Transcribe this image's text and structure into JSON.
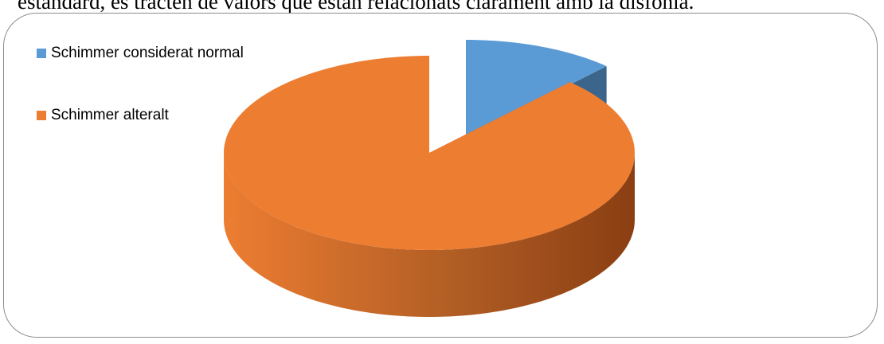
{
  "document": {
    "text_fragment": "estàndard, es tracten de valors que estan relacionats clarament amb la disfonia."
  },
  "chart_data": {
    "type": "pie",
    "style": "3d-exploded",
    "categories": [
      "Schimmer considerat normal",
      "Schimmer alteralt"
    ],
    "values": [
      12,
      88
    ],
    "colors": [
      "#5b9bd5",
      "#ed7d31"
    ],
    "side_colors": [
      "#2f5f8f",
      "#8a3e12"
    ],
    "legend": {
      "position": "top-left",
      "entries": [
        "Schimmer considerat normal",
        "Schimmer alteralt"
      ]
    },
    "title": ""
  }
}
